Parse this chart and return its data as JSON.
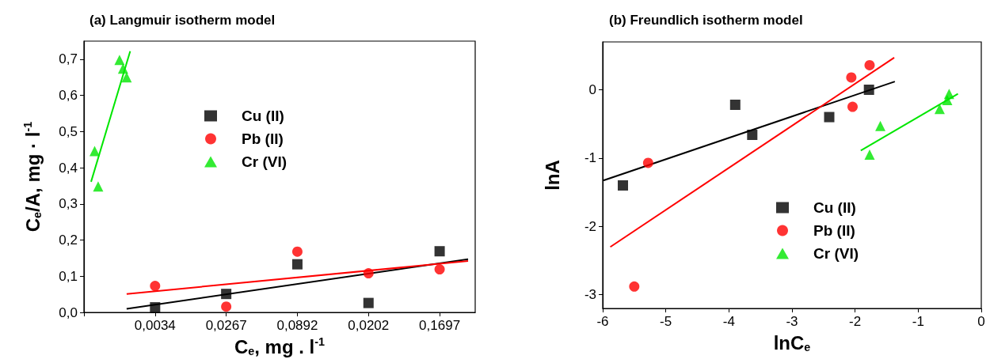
{
  "chart_data": [
    {
      "type": "scatter",
      "title": "(a) Langmuir isotherm model",
      "xlabel": "C$_{e}$, mg . l$^{-1}$",
      "ylabel": "C$_{e}$/A, mg · l$^{-1}$",
      "categories": [
        null,
        null,
        null,
        null,
        null,
        null,
        null,
        null,
        null,
        null,
        null,
        null,
        null,
        null,
        null,
        null,
        null,
        null,
        null,
        null,
        "0,0034",
        null,
        null,
        null,
        null,
        null,
        null,
        null,
        null,
        null,
        null,
        null,
        null,
        null,
        null,
        null,
        null,
        null,
        null,
        null,
        "0,0267",
        null,
        null,
        null,
        null,
        null,
        null,
        null,
        null,
        null,
        null,
        null,
        null,
        null,
        null,
        null,
        null,
        null,
        null,
        null,
        "0,0892",
        null,
        null,
        null,
        null,
        null,
        null,
        null,
        null,
        null,
        null,
        null,
        null,
        null,
        null,
        null,
        null,
        null,
        null,
        null,
        "0,0202",
        null,
        null,
        null,
        null,
        null,
        null,
        null,
        null,
        null,
        null,
        null,
        null,
        null,
        null,
        null,
        null,
        null,
        null,
        null,
        "0,1697",
        null,
        null,
        null,
        null,
        null,
        null,
        null,
        null,
        null,
        null
      ],
      "ylim": [
        0,
        0.75
      ],
      "yticks": [
        {
          "value": 0,
          "label": "0,0"
        },
        {
          "value": 0.1,
          "label": "0,1"
        },
        {
          "value": 0.2,
          "label": "0,2"
        },
        {
          "value": 0.3,
          "label": "0,3"
        },
        {
          "value": 0.4,
          "label": "0,4"
        },
        {
          "value": 0.5,
          "label": "0,5"
        },
        {
          "value": 0.6,
          "label": "0,6"
        },
        {
          "value": 0.7,
          "label": "0,7"
        }
      ],
      "grid": false,
      "legend": "top",
      "series": [
        {
          "name": "Cu (II)",
          "color": "#000000",
          "marker": "square",
          "values": [
            null,
            null,
            null,
            null,
            null,
            null,
            null,
            null,
            null,
            null,
            null,
            null,
            null,
            null,
            null,
            null,
            null,
            null,
            null,
            null,
            0.014,
            null,
            null,
            null,
            null,
            null,
            null,
            null,
            null,
            null,
            null,
            null,
            null,
            null,
            null,
            null,
            null,
            null,
            null,
            null,
            0.051,
            null,
            null,
            null,
            null,
            null,
            null,
            null,
            null,
            null,
            null,
            null,
            null,
            null,
            null,
            null,
            null,
            null,
            null,
            null,
            0.133,
            null,
            null,
            null,
            null,
            null,
            null,
            null,
            null,
            null,
            null,
            null,
            null,
            null,
            null,
            null,
            null,
            null,
            null,
            null,
            0.026,
            null,
            null,
            null,
            null,
            null,
            null,
            null,
            null,
            null,
            null,
            null,
            null,
            null,
            null,
            null,
            null,
            null,
            null,
            null,
            0.169,
            null,
            null,
            null,
            null,
            null,
            null,
            null,
            null,
            null,
            null
          ]
        },
        {
          "name": "Pb (II)",
          "color": "#ff0000",
          "marker": "circle",
          "values": [
            null,
            null,
            null,
            null,
            null,
            null,
            null,
            null,
            null,
            null,
            null,
            null,
            null,
            null,
            null,
            null,
            null,
            null,
            null,
            null,
            0.073,
            null,
            null,
            null,
            null,
            null,
            null,
            null,
            null,
            null,
            null,
            null,
            null,
            null,
            null,
            null,
            null,
            null,
            null,
            null,
            0.016,
            null,
            null,
            null,
            null,
            null,
            null,
            null,
            null,
            null,
            null,
            null,
            null,
            null,
            null,
            null,
            null,
            null,
            null,
            null,
            0.168,
            null,
            null,
            null,
            null,
            null,
            null,
            null,
            null,
            null,
            null,
            null,
            null,
            null,
            null,
            null,
            null,
            null,
            null,
            null,
            0.108,
            null,
            null,
            null,
            null,
            null,
            null,
            null,
            null,
            null,
            null,
            null,
            null,
            null,
            null,
            null,
            null,
            null,
            null,
            null,
            0.119,
            null,
            null,
            null,
            null,
            null,
            null,
            null,
            null,
            null,
            null
          ]
        },
        {
          "name": "Cr (VI)",
          "color": "#00e600",
          "marker": "triangle",
          "values": [
            null,
            null,
            null,
            0.446,
            0.348,
            null,
            null,
            null,
            null,
            null,
            0.698,
            0.674,
            0.65,
            null,
            null,
            null,
            null,
            null,
            null,
            null,
            null,
            null,
            null,
            null,
            null,
            null,
            null,
            null,
            null,
            null,
            null,
            null,
            null,
            null,
            null,
            null,
            null,
            null,
            null,
            null,
            null,
            null,
            null,
            null,
            null,
            null,
            null,
            null,
            null,
            null,
            null,
            null,
            null,
            null,
            null,
            null,
            null,
            null,
            null,
            null,
            null,
            null,
            null,
            null,
            null,
            null,
            null,
            null,
            null,
            null,
            null,
            null,
            null,
            null,
            null,
            null,
            null,
            null,
            null,
            null,
            null,
            null,
            null,
            null,
            null,
            null,
            null,
            null,
            null,
            null,
            null,
            null,
            null,
            null,
            null,
            null,
            null,
            null,
            null,
            null,
            null,
            null,
            null,
            null,
            null,
            null,
            null,
            null,
            null,
            null,
            null
          ]
        },
        {
          "type": "line",
          "color": "#000000",
          "marker": "none",
          "values": [
            null,
            null,
            null,
            null,
            null,
            null,
            null,
            null,
            null,
            null,
            null,
            null,
            0.01,
            null,
            null,
            null,
            null,
            null,
            null,
            null,
            null,
            null,
            null,
            null,
            null,
            null,
            null,
            null,
            null,
            null,
            null,
            null,
            null,
            null,
            null,
            null,
            null,
            null,
            null,
            null,
            null,
            null,
            null,
            null,
            null,
            null,
            null,
            null,
            null,
            null,
            null,
            null,
            null,
            null,
            null,
            null,
            null,
            null,
            null,
            null,
            null,
            null,
            null,
            null,
            null,
            null,
            null,
            null,
            null,
            null,
            null,
            null,
            null,
            null,
            null,
            null,
            null,
            null,
            null,
            null,
            null,
            null,
            null,
            null,
            null,
            null,
            null,
            null,
            null,
            null,
            null,
            null,
            null,
            null,
            null,
            null,
            null,
            null,
            null,
            null,
            null,
            null,
            null,
            null,
            null,
            null,
            null,
            null,
            0.147,
            null,
            null
          ]
        },
        {
          "type": "line",
          "color": "#ff0000",
          "marker": "none",
          "values": [
            null,
            null,
            null,
            null,
            null,
            null,
            null,
            null,
            null,
            null,
            null,
            null,
            0.051,
            null,
            null,
            null,
            null,
            null,
            null,
            null,
            null,
            null,
            null,
            null,
            null,
            null,
            null,
            null,
            null,
            null,
            null,
            null,
            null,
            null,
            null,
            null,
            null,
            null,
            null,
            null,
            null,
            null,
            null,
            null,
            null,
            null,
            null,
            null,
            null,
            null,
            null,
            null,
            null,
            null,
            null,
            null,
            null,
            null,
            null,
            null,
            null,
            null,
            null,
            null,
            null,
            null,
            null,
            null,
            null,
            null,
            null,
            null,
            null,
            null,
            null,
            null,
            null,
            null,
            null,
            null,
            null,
            null,
            null,
            null,
            null,
            null,
            null,
            null,
            null,
            null,
            null,
            null,
            null,
            null,
            null,
            null,
            null,
            null,
            null,
            null,
            null,
            null,
            null,
            null,
            null,
            null,
            null,
            null,
            0.142,
            null,
            null
          ]
        },
        {
          "type": "line",
          "color": "#00e600",
          "marker": "none",
          "values": [
            null,
            null,
            0.361,
            null,
            null,
            null,
            null,
            null,
            null,
            null,
            null,
            null,
            null,
            0.722,
            null,
            null,
            null,
            null,
            null,
            null,
            null,
            null,
            null,
            null,
            null,
            null,
            null,
            null,
            null,
            null,
            null,
            null,
            null,
            null,
            null,
            null,
            null,
            null,
            null,
            null,
            null,
            null,
            null,
            null,
            null,
            null,
            null,
            null,
            null,
            null,
            null,
            null,
            null,
            null,
            null,
            null,
            null,
            null,
            null,
            null,
            null,
            null,
            null,
            null,
            null,
            null,
            null,
            null,
            null,
            null,
            null,
            null,
            null,
            null,
            null,
            null,
            null,
            null,
            null,
            null,
            null,
            null,
            null,
            null,
            null,
            null,
            null,
            null,
            null,
            null,
            null,
            null,
            null,
            null,
            null,
            null,
            null,
            null,
            null,
            null,
            null,
            null,
            null,
            null,
            null,
            null,
            null,
            null,
            null,
            null,
            null
          ]
        }
      ]
    },
    {
      "type": "scatter",
      "title": "(b) Freundlich isotherm model",
      "xlabel": "lnC$_{e}$",
      "ylabel": "lnA",
      "xlim": [
        -6,
        0
      ],
      "xticks": [
        -6,
        -5,
        -4,
        -3,
        -2,
        -1,
        0
      ],
      "ylim": [
        -3.2,
        0.7
      ],
      "yticks": [
        -3,
        -2,
        -1,
        0
      ],
      "grid": false,
      "legend": "bottom right",
      "series": [
        {
          "name": "Cu (II)",
          "color": "#000000",
          "marker": "square",
          "x": [
            -5.68,
            -3.9,
            -3.63,
            -2.41,
            -1.78
          ],
          "values": [
            -1.4,
            -0.22,
            -0.66,
            -0.4,
            0
          ]
        },
        {
          "name": "Pb (II)",
          "color": "#ff0000",
          "marker": "circle",
          "x": [
            -5.28,
            -5.5,
            -2.06,
            -2.04,
            -1.77
          ],
          "values": [
            -1.07,
            -2.88,
            0.18,
            -0.25,
            0.36
          ]
        },
        {
          "name": "Cr (VI)",
          "color": "#00e600",
          "marker": "triangle",
          "x": [
            -1.77,
            -1.6,
            -0.66,
            -0.54,
            -0.51
          ],
          "values": [
            -0.95,
            -0.53,
            -0.28,
            -0.15,
            -0.06
          ]
        },
        {
          "type": "line",
          "color": "#000000",
          "marker": "none",
          "x": [
            -6,
            -1.37
          ],
          "values": [
            -1.33,
            0.12
          ]
        },
        {
          "type": "line",
          "color": "#ff0000",
          "marker": "none",
          "x": [
            -5.88,
            -1.38
          ],
          "values": [
            -2.3,
            0.47
          ]
        },
        {
          "type": "line",
          "color": "#00e600",
          "marker": "none",
          "x": [
            -1.91,
            -0.37
          ],
          "values": [
            -0.89,
            -0.06
          ]
        }
      ]
    }
  ]
}
